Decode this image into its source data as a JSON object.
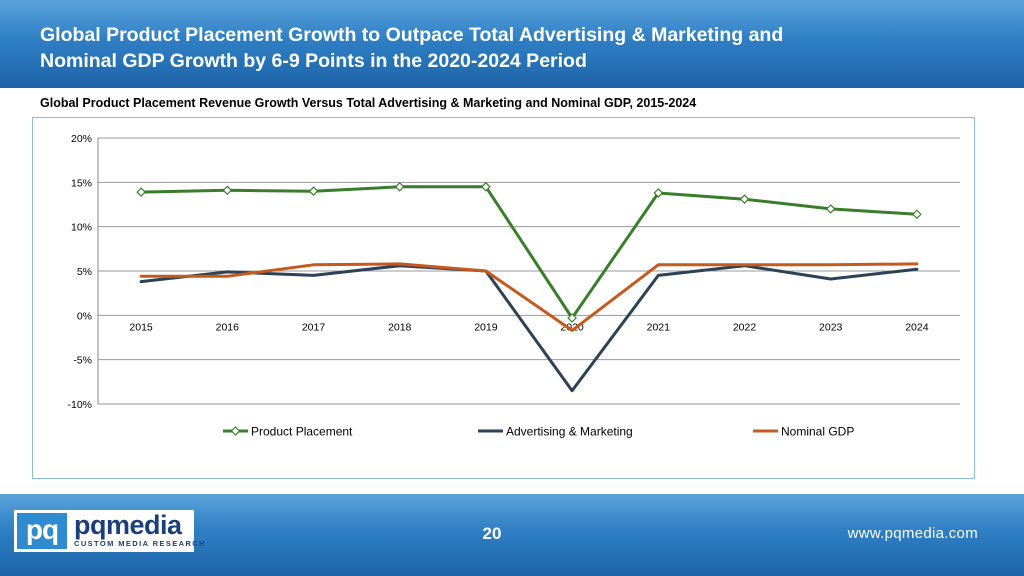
{
  "header": {
    "title_line1": "Global Product Placement Growth to Outpace Total Advertising & Marketing and",
    "title_line2": "Nominal GDP Growth by 6-9 Points in the 2020-2024 Period"
  },
  "chart_data": {
    "type": "line",
    "title": "Global Product Placement Revenue Growth Versus Total Advertising & Marketing and Nominal GDP, 2015-2024",
    "categories": [
      "2015",
      "2016",
      "2017",
      "2018",
      "2019",
      "2020",
      "2021",
      "2022",
      "2023",
      "2024"
    ],
    "series": [
      {
        "name": "Product Placement",
        "color": "#3a7d2c",
        "marker": "diamond",
        "values": [
          13.9,
          14.1,
          14.0,
          14.5,
          14.5,
          -0.3,
          13.8,
          13.1,
          12.0,
          11.4
        ]
      },
      {
        "name": "Advertising & Marketing",
        "color": "#2d4157",
        "marker": "none",
        "values": [
          3.8,
          4.9,
          4.5,
          5.6,
          5.0,
          -8.5,
          4.5,
          5.6,
          4.1,
          5.2
        ]
      },
      {
        "name": "Nominal GDP",
        "color": "#c65a1e",
        "marker": "none",
        "values": [
          4.4,
          4.4,
          5.7,
          5.8,
          5.0,
          -1.7,
          5.7,
          5.7,
          5.7,
          5.8
        ]
      }
    ],
    "ylim": [
      -10,
      20
    ],
    "ystep": 5,
    "ytick_labels": [
      "20%",
      "15%",
      "10%",
      "5%",
      "0%",
      "-5%",
      "-10%"
    ],
    "grid": true,
    "legend_position": "bottom"
  },
  "footer": {
    "logo_mark": "pq",
    "logo_word": "pqmedia",
    "logo_tagline": "CUSTOM MEDIA RESEARCH",
    "page_number": "20",
    "website": "www.pqmedia.com"
  }
}
